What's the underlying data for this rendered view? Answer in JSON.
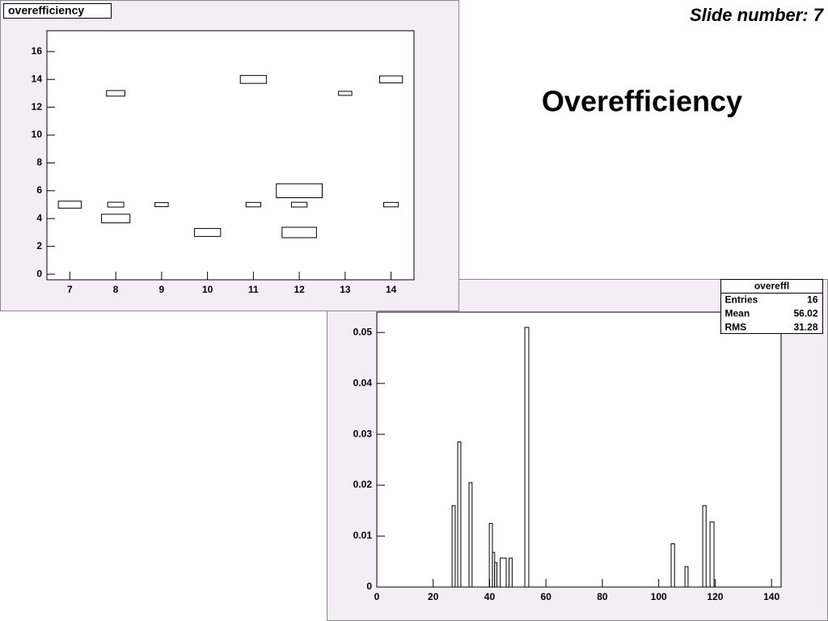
{
  "slide_number": "Slide number: 7",
  "title": "Overefficiency",
  "chart_data": [
    {
      "type": "box2d",
      "title": "overefficiency",
      "x": [
        7,
        8,
        8,
        8,
        9,
        10,
        11,
        11,
        12,
        12,
        12,
        13,
        14,
        14
      ],
      "y": [
        5,
        13,
        5,
        4,
        5,
        3,
        14,
        5,
        6,
        5,
        3,
        13,
        14,
        5
      ],
      "values": [
        0.5,
        0.4,
        0.35,
        0.62,
        0.29,
        0.57,
        0.57,
        0.32,
        1.0,
        0.34,
        0.75,
        0.29,
        0.5,
        0.32
      ],
      "xlim": [
        6.5,
        14.5
      ],
      "ylim": [
        -0.4,
        17.5
      ],
      "xticks": [
        7,
        8,
        9,
        10,
        11,
        12,
        13,
        14
      ],
      "yticks": [
        0,
        2,
        4,
        6,
        8,
        10,
        12,
        14,
        16
      ],
      "color": "#000000"
    },
    {
      "type": "histogram",
      "bins": [
        26.7,
        27.8,
        28.7,
        29.8,
        32.7,
        33.8,
        39.9,
        41.0,
        41.8,
        42.6,
        43.8,
        45.9,
        46.9,
        48.0,
        52.5,
        53.9,
        104.4,
        105.6,
        109.3,
        110.4,
        115.6,
        116.8,
        118.2,
        119.6
      ],
      "values": [
        0.016,
        0,
        0.0285,
        0,
        0.0205,
        0,
        0.0125,
        0.0068,
        0.0048,
        0,
        0.0057,
        0,
        0.0057,
        0,
        0.051,
        0,
        0.0085,
        0,
        0.004,
        0,
        0.016,
        0,
        0.0128
      ],
      "xlim": [
        0,
        143.4
      ],
      "ylim": [
        0,
        0.054
      ],
      "xticks": [
        0,
        20,
        40,
        60,
        80,
        100,
        120,
        140
      ],
      "yticks": [
        0,
        0.01,
        0.02,
        0.03,
        0.04,
        0.05
      ],
      "color": "#000000",
      "stats": {
        "title": "overeffl",
        "rows": [
          {
            "label": "Entries",
            "value": 16
          },
          {
            "label": "Mean",
            "value": 56.02
          },
          {
            "label": "RMS",
            "value": 31.28
          }
        ]
      }
    }
  ]
}
